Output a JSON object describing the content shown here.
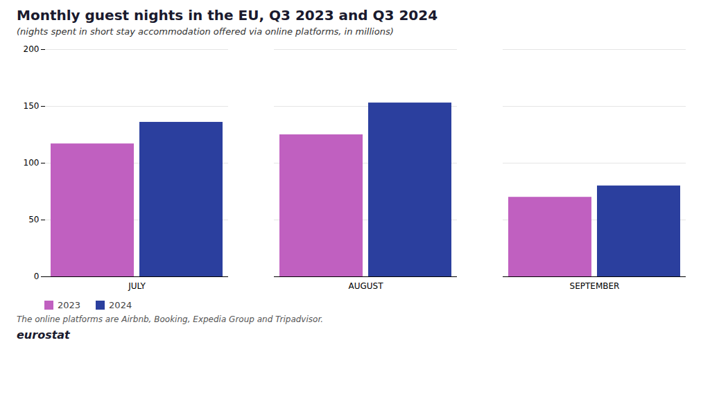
{
  "chart_data": {
    "type": "bar",
    "title": "Monthly guest nights in the EU, Q3 2023 and Q3 2024",
    "subtitle": "(nights spent in short stay accommodation offered via online platforms, in millions)",
    "categories": [
      "JULY",
      "AUGUST",
      "SEPTEMBER"
    ],
    "series": [
      {
        "name": "2023",
        "color": "#c060c0",
        "values": [
          117,
          125,
          70
        ]
      },
      {
        "name": "2024",
        "color": "#2b3f9e",
        "values": [
          136,
          153,
          80
        ]
      }
    ],
    "ylim": [
      0,
      200
    ],
    "yticks": [
      0,
      50,
      100,
      150,
      200
    ],
    "grid": true,
    "legend": "bottom",
    "footnote": "The online platforms are Airbnb, Booking, Expedia Group and Tripadvisor.",
    "annotations": [
      "eurostat"
    ]
  }
}
